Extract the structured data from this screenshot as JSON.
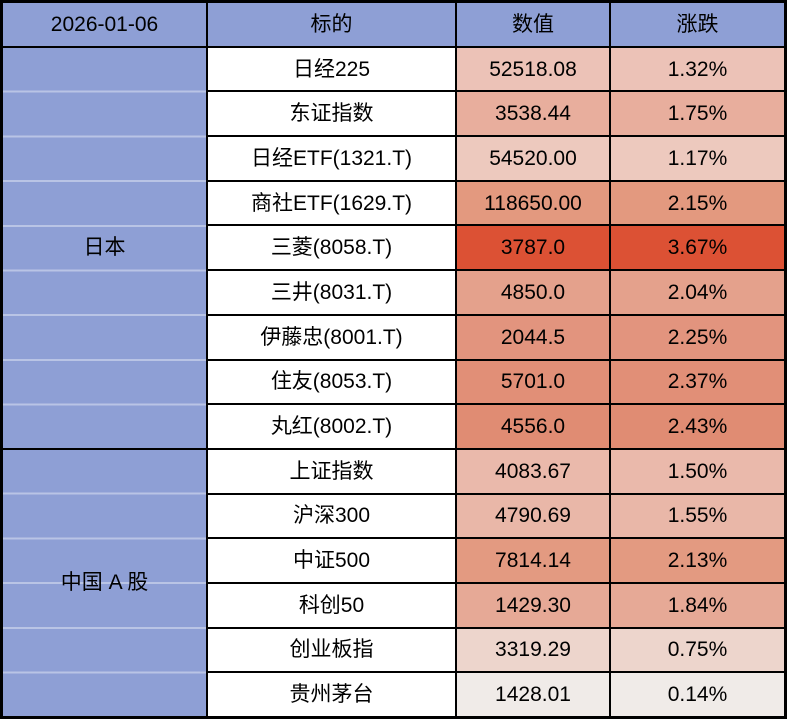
{
  "header": {
    "date": "2026-01-06",
    "target": "标的",
    "value": "数值",
    "change": "涨跌"
  },
  "colors": {
    "header_bg": "#8E9FD5",
    "group_bg": "#8E9FD5",
    "name_bg": "#FFFFFF",
    "border": "#000000",
    "text": "#000000"
  },
  "chart_data": {
    "type": "table",
    "title": "2026-01-06",
    "columns": [
      "标的",
      "数值",
      "涨跌"
    ],
    "legend": "cell background tint scales with daily percent change (white ≈ 0% to deep red ≈ 3.7%)",
    "groups": [
      {
        "label": "日本",
        "rows": [
          {
            "target": "日经225",
            "value": "52518.08",
            "change": "1.32%",
            "bg": "#ECC2B7"
          },
          {
            "target": "东证指数",
            "value": "3538.44",
            "change": "1.75%",
            "bg": "#E8AE9D"
          },
          {
            "target": "日经ETF(1321.T)",
            "value": "54520.00",
            "change": "1.17%",
            "bg": "#EDC9BE"
          },
          {
            "target": "商社ETF(1629.T)",
            "value": "118650.00",
            "change": "2.15%",
            "bg": "#E3997F"
          },
          {
            "target": "三菱(8058.T)",
            "value": "3787.0",
            "change": "3.67%",
            "bg": "#DC5134"
          },
          {
            "target": "三井(8031.T)",
            "value": "4850.0",
            "change": "2.04%",
            "bg": "#E4A18C"
          },
          {
            "target": "伊藤忠(8001.T)",
            "value": "2044.5",
            "change": "2.25%",
            "bg": "#E2947E"
          },
          {
            "target": "住友(8053.T)",
            "value": "5701.0",
            "change": "2.37%",
            "bg": "#E18F77"
          },
          {
            "target": "丸红(8002.T)",
            "value": "4556.0",
            "change": "2.43%",
            "bg": "#E08C73"
          }
        ]
      },
      {
        "label": "中国 A 股",
        "rows": [
          {
            "target": "上证指数",
            "value": "4083.67",
            "change": "1.50%",
            "bg": "#EAB9AB"
          },
          {
            "target": "沪深300",
            "value": "4790.69",
            "change": "1.55%",
            "bg": "#E9B7A8"
          },
          {
            "target": "中证500",
            "value": "7814.14",
            "change": "2.13%",
            "bg": "#E39A81"
          },
          {
            "target": "科创50",
            "value": "1429.30",
            "change": "1.84%",
            "bg": "#E6A996"
          },
          {
            "target": "创业板指",
            "value": "3319.29",
            "change": "0.75%",
            "bg": "#EDD5CC"
          },
          {
            "target": "贵州茅台",
            "value": "1428.01",
            "change": "0.14%",
            "bg": "#F0EBE8"
          }
        ]
      }
    ]
  }
}
